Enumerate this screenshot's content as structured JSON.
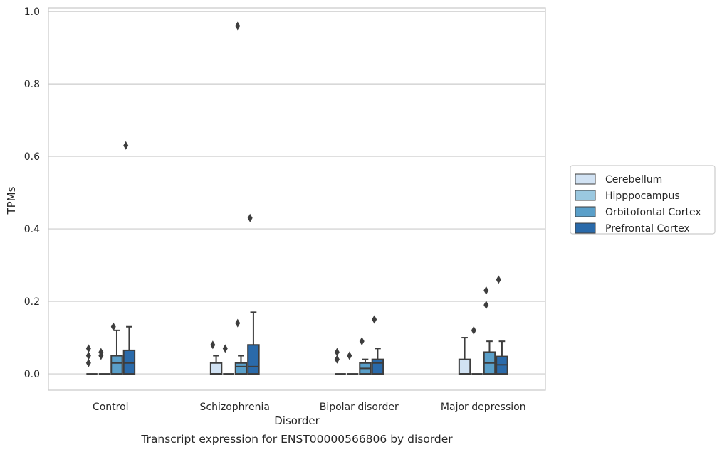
{
  "chart_data": {
    "type": "box",
    "title": "",
    "caption": "Transcript expression for ENST00000566806 by disorder",
    "xlabel": "Disorder",
    "ylabel": "TPMs",
    "ylim": [
      -0.045,
      1.01
    ],
    "yticks": [
      "0.0",
      "0.2",
      "0.4",
      "0.6",
      "0.8",
      "1.0"
    ],
    "ytick_values": [
      0.0,
      0.2,
      0.4,
      0.6,
      0.8,
      1.0
    ],
    "categories": [
      "Control",
      "Schizophrenia",
      "Bipolar disorder",
      "Major depression"
    ],
    "grid": "horizontal",
    "legend_position": "right",
    "series": [
      {
        "name": "Cerebellum",
        "color": "#d1e2f3",
        "boxes": [
          {
            "q1": 0,
            "median": 0,
            "q3": 0,
            "whisker_low": 0,
            "whisker_high": 0,
            "outliers": [
              0.03,
              0.05,
              0.07
            ]
          },
          {
            "q1": 0,
            "median": 0,
            "q3": 0.03,
            "whisker_low": 0,
            "whisker_high": 0.05,
            "outliers": [
              0.08
            ]
          },
          {
            "q1": 0,
            "median": 0,
            "q3": 0,
            "whisker_low": 0,
            "whisker_high": 0,
            "outliers": [
              0.04,
              0.04,
              0.06
            ]
          },
          {
            "q1": 0,
            "median": 0,
            "q3": 0.04,
            "whisker_low": 0,
            "whisker_high": 0.1,
            "outliers": []
          }
        ]
      },
      {
        "name": "Hipppocampus",
        "color": "#9ac8e0",
        "boxes": [
          {
            "q1": 0,
            "median": 0,
            "q3": 0,
            "whisker_low": 0,
            "whisker_high": 0,
            "outliers": [
              0.05,
              0.06
            ]
          },
          {
            "q1": 0,
            "median": 0,
            "q3": 0,
            "whisker_low": 0,
            "whisker_high": 0,
            "outliers": [
              0.07
            ]
          },
          {
            "q1": 0,
            "median": 0,
            "q3": 0,
            "whisker_low": 0,
            "whisker_high": 0,
            "outliers": [
              0.05
            ]
          },
          {
            "q1": 0,
            "median": 0,
            "q3": 0,
            "whisker_low": 0,
            "whisker_high": 0,
            "outliers": [
              0.12
            ]
          }
        ]
      },
      {
        "name": "Orbitofontal Cortex",
        "color": "#5a9fc9",
        "boxes": [
          {
            "q1": 0,
            "median": 0.03,
            "q3": 0.05,
            "whisker_low": 0,
            "whisker_high": 0.12,
            "outliers": [
              0.13
            ]
          },
          {
            "q1": 0,
            "median": 0.02,
            "q3": 0.03,
            "whisker_low": 0,
            "whisker_high": 0.05,
            "outliers": [
              0.14,
              0.96
            ]
          },
          {
            "q1": 0,
            "median": 0.015,
            "q3": 0.03,
            "whisker_low": 0,
            "whisker_high": 0.04,
            "outliers": [
              0.09
            ]
          },
          {
            "q1": 0,
            "median": 0.03,
            "q3": 0.06,
            "whisker_low": 0,
            "whisker_high": 0.09,
            "outliers": [
              0.19,
              0.23
            ]
          }
        ]
      },
      {
        "name": "Prefrontal Cortex",
        "color": "#2a6aaa",
        "boxes": [
          {
            "q1": 0,
            "median": 0.03,
            "q3": 0.065,
            "whisker_low": 0,
            "whisker_high": 0.13,
            "outliers": [
              0.63
            ]
          },
          {
            "q1": 0,
            "median": 0.02,
            "q3": 0.08,
            "whisker_low": 0,
            "whisker_high": 0.17,
            "outliers": [
              0.43
            ]
          },
          {
            "q1": 0,
            "median": 0.03,
            "q3": 0.04,
            "whisker_low": 0,
            "whisker_high": 0.07,
            "outliers": [
              0.15
            ]
          },
          {
            "q1": 0,
            "median": 0.025,
            "q3": 0.048,
            "whisker_low": 0,
            "whisker_high": 0.09,
            "outliers": [
              0.26
            ]
          }
        ]
      }
    ]
  }
}
